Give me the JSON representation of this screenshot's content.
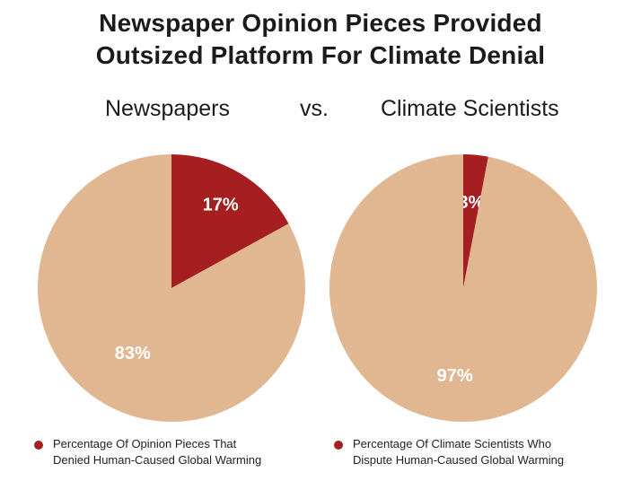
{
  "title": {
    "line1": "Newspaper Opinion Pieces Provided",
    "line2": "Outsized Platform For Climate Denial"
  },
  "subtitles": {
    "left": "Newspapers",
    "middle": "vs.",
    "right": "Climate Scientists"
  },
  "colors": {
    "highlight": "#a51f20",
    "base": "#e0b791"
  },
  "chart_data": [
    {
      "type": "pie",
      "title": "Newspapers",
      "slices": [
        {
          "label": "17%",
          "value": 17,
          "color": "#a51f20"
        },
        {
          "label": "83%",
          "value": 83,
          "color": "#e0b791"
        }
      ],
      "legend": {
        "line1": "Percentage Of Opinion Pieces That",
        "line2": "Denied Human-Caused Global Warming"
      }
    },
    {
      "type": "pie",
      "title": "Climate Scientists",
      "slices": [
        {
          "label": "3%",
          "value": 3,
          "color": "#a51f20"
        },
        {
          "label": "97%",
          "value": 97,
          "color": "#e0b791"
        }
      ],
      "legend": {
        "line1": "Percentage Of Climate Scientists Who",
        "line2": "Dispute Human-Caused Global Warming"
      }
    }
  ]
}
